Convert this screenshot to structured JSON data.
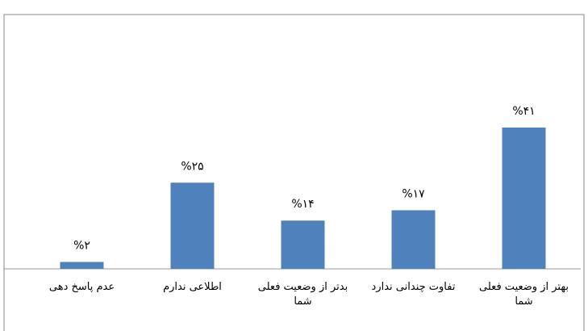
{
  "chart_data": {
    "type": "bar",
    "categories": [
      "عدم پاسخ دهی",
      "اطلاعی ندارم",
      "بدتر از وضعیت فعلی شما",
      "تفاوت چندانی ندارد",
      "بهتر از وضعیت فعلی شما"
    ],
    "values": [
      2,
      25,
      14,
      17,
      41
    ],
    "value_labels": [
      "%۲",
      "%۲۵",
      "%۱۴",
      "%۱۷",
      "%۴۱"
    ],
    "color": "#4f81bd"
  }
}
